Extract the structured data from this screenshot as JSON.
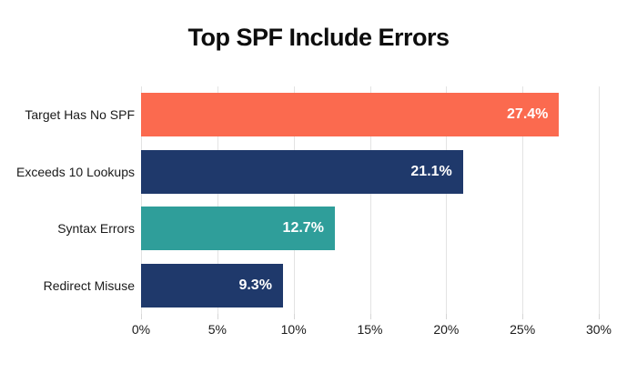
{
  "chart_data": {
    "type": "bar",
    "orientation": "horizontal",
    "title": "Top SPF Include Errors",
    "categories": [
      "Target Has No SPF",
      "Exceeds 10 Lookups",
      "Syntax Errors",
      "Redirect Misuse"
    ],
    "values": [
      27.4,
      21.1,
      12.7,
      9.3
    ],
    "value_labels": [
      "27.4%",
      "21.1%",
      "12.7%",
      "9.3%"
    ],
    "bar_colors": [
      "#FB6A4F",
      "#1F396B",
      "#2F9E9A",
      "#1F396B"
    ],
    "xlim": [
      0,
      30
    ],
    "x_ticks": [
      0,
      5,
      10,
      15,
      20,
      25,
      30
    ],
    "x_tick_labels": [
      "0%",
      "5%",
      "10%",
      "15%",
      "20%",
      "25%",
      "30%"
    ],
    "grid": "vertical-gridlines",
    "legend": "none",
    "colors": {
      "background": "#FFFFFF",
      "title": "#0D0D0D",
      "axis_label": "#1A1A1A",
      "gridline": "#E3E3E3",
      "value_label": "#FFFFFF"
    }
  }
}
